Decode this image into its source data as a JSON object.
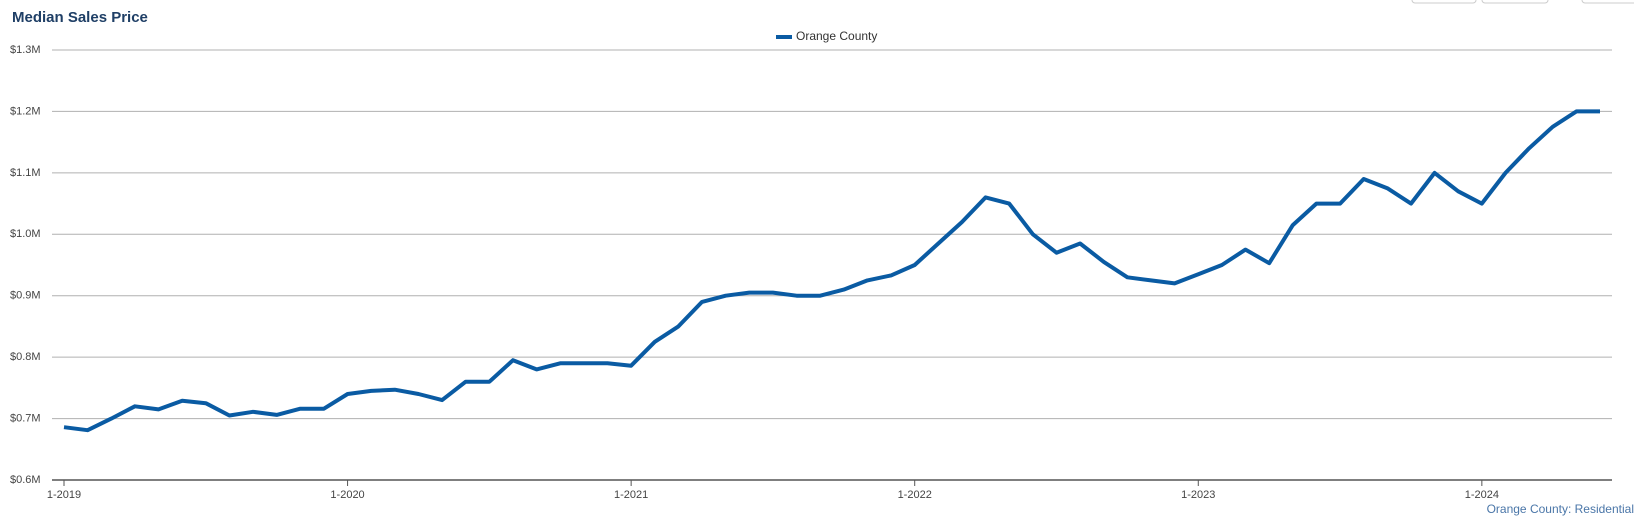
{
  "chart_data": {
    "type": "line",
    "title": "Median Sales Price",
    "categories": [
      "1-2019",
      null,
      null,
      null,
      null,
      null,
      null,
      null,
      null,
      null,
      null,
      null,
      "1-2020",
      null,
      null,
      null,
      null,
      null,
      null,
      null,
      null,
      null,
      null,
      null,
      "1-2021",
      null,
      null,
      null,
      null,
      null,
      null,
      null,
      null,
      null,
      null,
      null,
      "1-2022",
      null,
      null,
      null,
      null,
      null,
      null,
      null,
      null,
      null,
      null,
      null,
      "1-2023",
      null,
      null,
      null,
      null,
      null,
      null,
      null,
      null,
      null,
      null,
      null,
      "1-2024",
      null,
      null,
      null,
      null,
      null
    ],
    "series": [
      {
        "name": "Orange County",
        "color": "#0a5ba3",
        "values": [
          686000,
          681000,
          700000,
          720000,
          715000,
          729000,
          725000,
          705000,
          711000,
          706000,
          716000,
          716000,
          740000,
          745000,
          747000,
          740000,
          730000,
          760000,
          760000,
          795000,
          780000,
          790000,
          790000,
          790000,
          786000,
          825000,
          850000,
          890000,
          900000,
          905000,
          905000,
          900000,
          900000,
          910000,
          925000,
          933000,
          950000,
          985000,
          1020000,
          1060000,
          1050000,
          1000000,
          970000,
          985000,
          955000,
          930000,
          925000,
          920000,
          935000,
          950000,
          975000,
          953000,
          1015000,
          1050000,
          1050000,
          1090000,
          1075000,
          1050000,
          1100000,
          1070000,
          1050000,
          1100000,
          1140000,
          1175000,
          1200000,
          1200000
        ]
      }
    ],
    "ylim": [
      600000,
      1300000
    ],
    "yticks": [
      {
        "value": 600000,
        "label": "$0.6M"
      },
      {
        "value": 700000,
        "label": "$0.7M"
      },
      {
        "value": 800000,
        "label": "$0.8M"
      },
      {
        "value": 900000,
        "label": "$0.9M"
      },
      {
        "value": 1000000,
        "label": "$1.0M"
      },
      {
        "value": 1100000,
        "label": "$1.1M"
      },
      {
        "value": 1200000,
        "label": "$1.2M"
      },
      {
        "value": 1300000,
        "label": "$1.3M"
      }
    ],
    "grid": true,
    "legend": "top",
    "footnote": "Orange County: Residential"
  }
}
